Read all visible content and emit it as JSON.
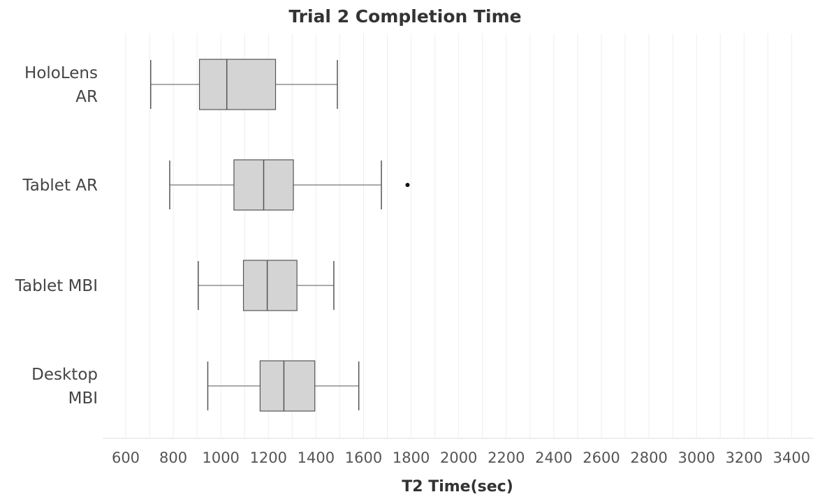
{
  "chart_data": {
    "type": "box",
    "title": "Trial 2 Completion Time",
    "xlabel": "T2 Time(sec)",
    "ylabel": "",
    "xlim": [
      500,
      3500
    ],
    "xticks": [
      600,
      800,
      1000,
      1200,
      1400,
      1600,
      1800,
      2000,
      2200,
      2400,
      2600,
      2800,
      3000,
      3200,
      3400
    ],
    "xtick_labels": [
      "600",
      "800",
      "1000",
      "1200",
      "1400",
      "1600",
      "1800",
      "2000",
      "2200",
      "2400",
      "2600",
      "2800",
      "3000",
      "3200",
      "3400"
    ],
    "grid": "vertical",
    "categories": [
      {
        "lines": [
          "HoloLens",
          "AR"
        ],
        "whisker_low": 705,
        "q1": 910,
        "median": 1025,
        "q3": 1230,
        "whisker_high": 1490,
        "outliers": []
      },
      {
        "lines": [
          "Tablet AR"
        ],
        "whisker_low": 785,
        "q1": 1055,
        "median": 1180,
        "q3": 1305,
        "whisker_high": 1675,
        "outliers": [
          1785
        ]
      },
      {
        "lines": [
          "Tablet MBI"
        ],
        "whisker_low": 905,
        "q1": 1095,
        "median": 1195,
        "q3": 1320,
        "whisker_high": 1475,
        "outliers": []
      },
      {
        "lines": [
          "Desktop",
          "MBI"
        ],
        "whisker_low": 945,
        "q1": 1165,
        "median": 1265,
        "q3": 1395,
        "whisker_high": 1580,
        "outliers": []
      }
    ],
    "colors": {
      "box_fill": "#d4d4d4",
      "box_stroke": "#555555",
      "whisker": "#555555",
      "outlier": "#111111",
      "grid": "#eeeeee",
      "axis_line": "#dddddd"
    }
  }
}
